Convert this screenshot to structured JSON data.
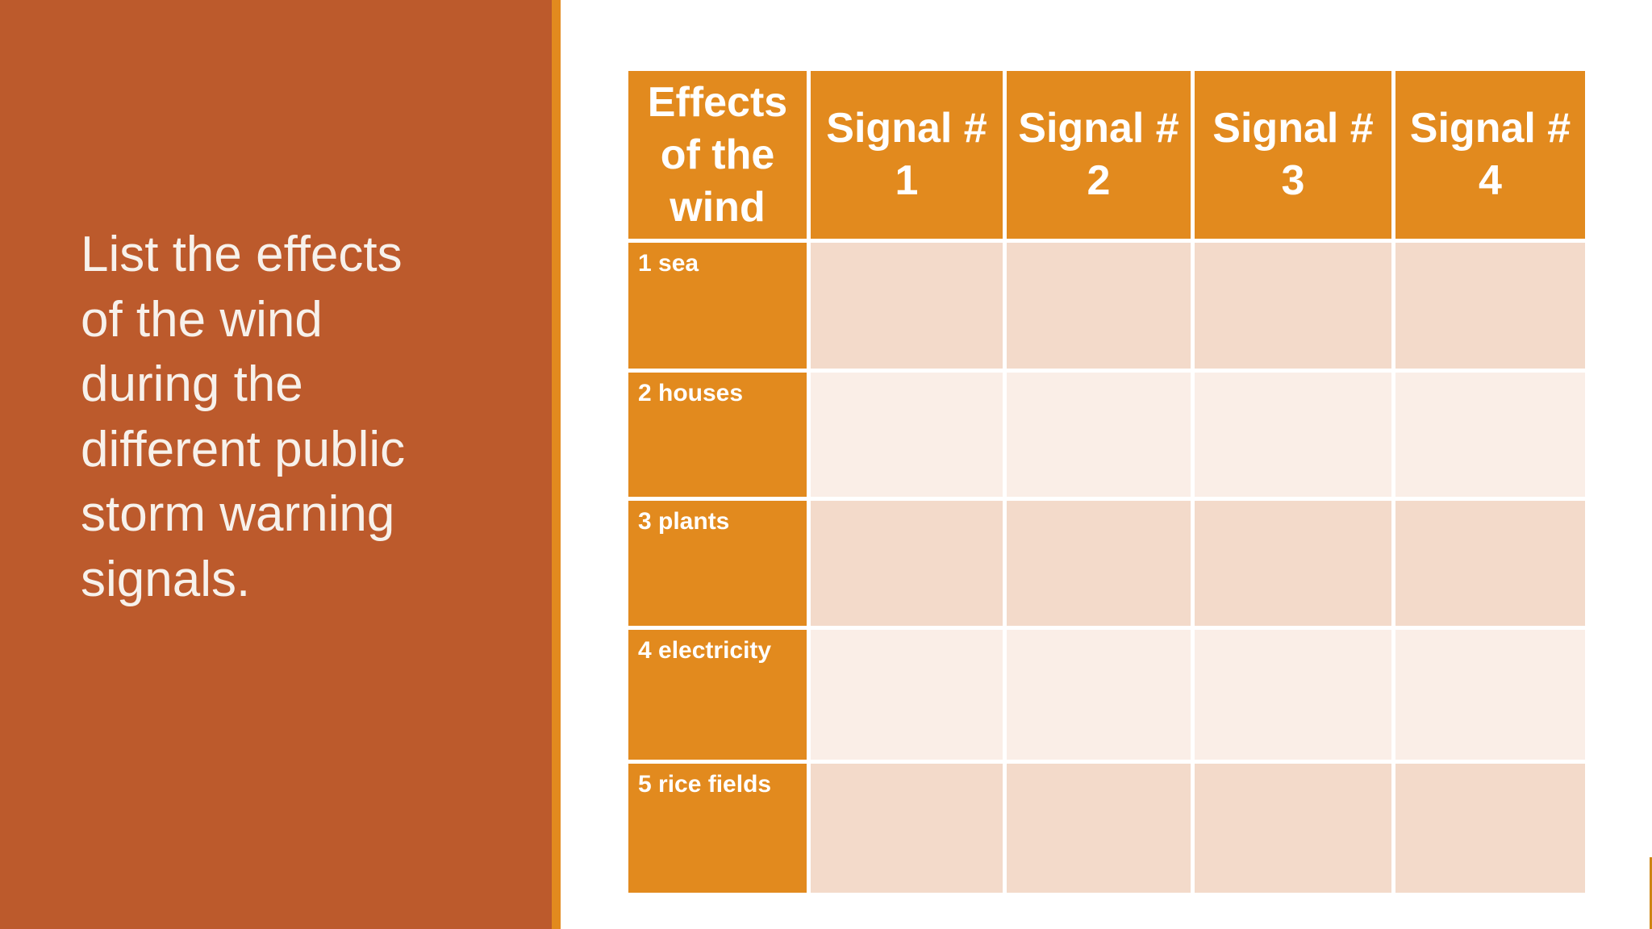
{
  "slide": {
    "left_panel": {
      "prompt_text": "List the effects of the wind during the different public storm warning signals.",
      "bg_color": "#BC5A2C",
      "accent_strip_color": "#E28A1E",
      "text_color": "#F7F1EB"
    },
    "table": {
      "header_row": {
        "corner_label": "Effects of the wind",
        "signal_columns": [
          "Signal # 1",
          "Signal # 2",
          "Signal # 3",
          "Signal # 4"
        ]
      },
      "rows": [
        {
          "label": "1 sea",
          "cells": [
            "",
            "",
            "",
            ""
          ]
        },
        {
          "label": "2 houses",
          "cells": [
            "",
            "",
            "",
            ""
          ]
        },
        {
          "label": "3 plants",
          "cells": [
            "",
            "",
            "",
            ""
          ]
        },
        {
          "label": "4 electricity",
          "cells": [
            "",
            "",
            "",
            ""
          ]
        },
        {
          "label": "5 rice fields",
          "cells": [
            "",
            "",
            "",
            ""
          ]
        }
      ],
      "colors": {
        "header_bg": "#E28A1E",
        "row_odd_bg": "#F3DACA",
        "row_even_bg": "#FAEEE7",
        "divider": "#FFFFFF",
        "header_text": "#FFFFFF"
      }
    },
    "right_edge_tick_color": "#CE8511"
  }
}
